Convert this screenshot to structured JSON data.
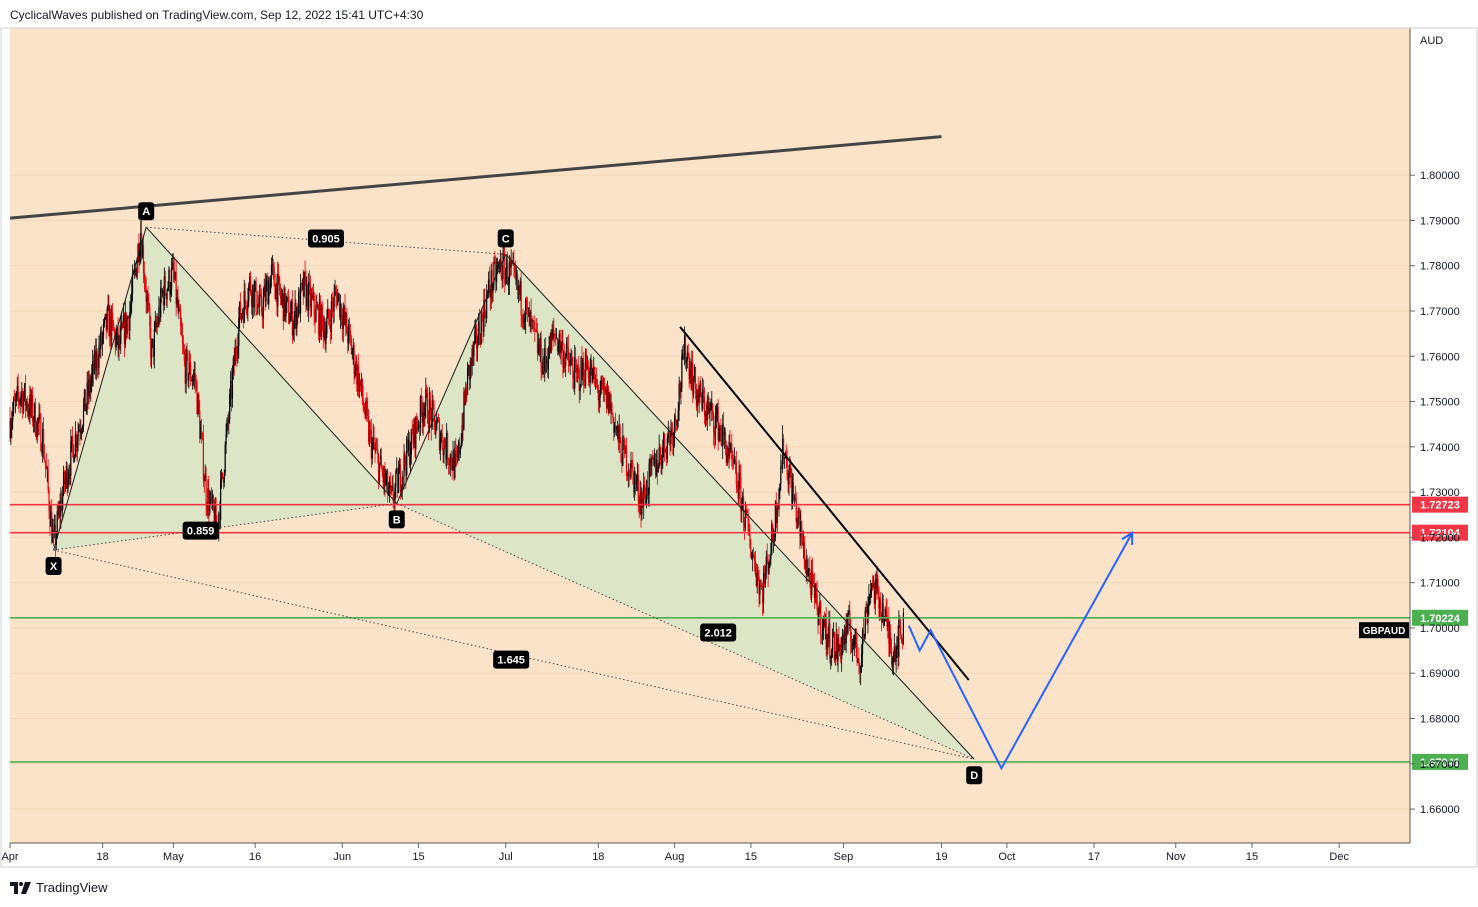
{
  "header": {
    "published": "CyclicalWaves published on TradingView.com, Sep 12, 2022 15:41 UTC+4:30"
  },
  "footer": {
    "brand": "TradingView",
    "logo_icon": "tradingview-logo-icon"
  },
  "colors": {
    "background": "#fbe3c9",
    "candle_up": "#000000",
    "candle_down": "#e8000b",
    "pattern_fill": "#d6e6c6",
    "red_level": "#f23645",
    "green_level": "#4caf50",
    "projection": "#2962ff"
  },
  "chart_data": {
    "type": "candlestick",
    "symbol": "GBPAUD",
    "currency": "AUD",
    "y_range": [
      1.6525,
      1.8325
    ],
    "x_range": [
      "2022-04-01",
      "2022-12-14"
    ],
    "y_ticks": [
      "1.80000",
      "1.79000",
      "1.78000",
      "1.77000",
      "1.76000",
      "1.75000",
      "1.74000",
      "1.73000",
      "1.72000",
      "1.71000",
      "1.70000",
      "1.69000",
      "1.68000",
      "1.67000",
      "1.66000"
    ],
    "x_ticks": [
      {
        "date": "2022-04-01",
        "label": "Apr"
      },
      {
        "date": "2022-04-18",
        "label": "18"
      },
      {
        "date": "2022-05-01",
        "label": "May"
      },
      {
        "date": "2022-05-16",
        "label": "16"
      },
      {
        "date": "2022-06-01",
        "label": "Jun"
      },
      {
        "date": "2022-06-15",
        "label": "15"
      },
      {
        "date": "2022-07-01",
        "label": "Jul"
      },
      {
        "date": "2022-07-18",
        "label": "18"
      },
      {
        "date": "2022-08-01",
        "label": "Aug"
      },
      {
        "date": "2022-08-15",
        "label": "15"
      },
      {
        "date": "2022-09-01",
        "label": "Sep"
      },
      {
        "date": "2022-09-19",
        "label": "19"
      },
      {
        "date": "2022-10-01",
        "label": "Oct"
      },
      {
        "date": "2022-10-17",
        "label": "17"
      },
      {
        "date": "2022-11-01",
        "label": "Nov"
      },
      {
        "date": "2022-11-15",
        "label": "15"
      },
      {
        "date": "2022-12-01",
        "label": "Dec"
      }
    ],
    "price_path": [
      [
        "2022-04-01",
        1.746
      ],
      [
        "2022-04-03",
        1.752
      ],
      [
        "2022-04-05",
        1.748
      ],
      [
        "2022-04-07",
        1.742
      ],
      [
        "2022-04-09",
        1.718
      ],
      [
        "2022-04-11",
        1.732
      ],
      [
        "2022-04-13",
        1.742
      ],
      [
        "2022-04-15",
        1.75
      ],
      [
        "2022-04-17",
        1.76
      ],
      [
        "2022-04-19",
        1.768
      ],
      [
        "2022-04-21",
        1.762
      ],
      [
        "2022-04-23",
        1.77
      ],
      [
        "2022-04-25",
        1.788
      ],
      [
        "2022-04-27",
        1.76
      ],
      [
        "2022-04-29",
        1.774
      ],
      [
        "2022-05-01",
        1.778
      ],
      [
        "2022-05-03",
        1.758
      ],
      [
        "2022-05-05",
        1.755
      ],
      [
        "2022-05-07",
        1.73
      ],
      [
        "2022-05-09",
        1.722
      ],
      [
        "2022-05-11",
        1.745
      ],
      [
        "2022-05-13",
        1.768
      ],
      [
        "2022-05-15",
        1.776
      ],
      [
        "2022-05-17",
        1.77
      ],
      [
        "2022-05-19",
        1.778
      ],
      [
        "2022-05-21",
        1.772
      ],
      [
        "2022-05-23",
        1.768
      ],
      [
        "2022-05-25",
        1.775
      ],
      [
        "2022-05-27",
        1.77
      ],
      [
        "2022-05-29",
        1.766
      ],
      [
        "2022-05-31",
        1.774
      ],
      [
        "2022-06-02",
        1.765
      ],
      [
        "2022-06-04",
        1.755
      ],
      [
        "2022-06-06",
        1.742
      ],
      [
        "2022-06-08",
        1.735
      ],
      [
        "2022-06-10",
        1.728
      ],
      [
        "2022-06-12",
        1.735
      ],
      [
        "2022-06-14",
        1.742
      ],
      [
        "2022-06-16",
        1.75
      ],
      [
        "2022-06-18",
        1.745
      ],
      [
        "2022-06-20",
        1.74
      ],
      [
        "2022-06-22",
        1.735
      ],
      [
        "2022-06-24",
        1.755
      ],
      [
        "2022-06-26",
        1.765
      ],
      [
        "2022-06-28",
        1.775
      ],
      [
        "2022-06-30",
        1.78
      ],
      [
        "2022-07-02",
        1.778
      ],
      [
        "2022-07-04",
        1.772
      ],
      [
        "2022-07-06",
        1.765
      ],
      [
        "2022-07-08",
        1.758
      ],
      [
        "2022-07-10",
        1.765
      ],
      [
        "2022-07-12",
        1.76
      ],
      [
        "2022-07-14",
        1.755
      ],
      [
        "2022-07-16",
        1.758
      ],
      [
        "2022-07-18",
        1.752
      ],
      [
        "2022-07-20",
        1.75
      ],
      [
        "2022-07-22",
        1.74
      ],
      [
        "2022-07-24",
        1.735
      ],
      [
        "2022-07-26",
        1.728
      ],
      [
        "2022-07-28",
        1.735
      ],
      [
        "2022-07-30",
        1.74
      ],
      [
        "2022-08-01",
        1.745
      ],
      [
        "2022-08-03",
        1.762
      ],
      [
        "2022-08-05",
        1.752
      ],
      [
        "2022-08-07",
        1.748
      ],
      [
        "2022-08-09",
        1.745
      ],
      [
        "2022-08-11",
        1.738
      ],
      [
        "2022-08-13",
        1.73
      ],
      [
        "2022-08-15",
        1.718
      ],
      [
        "2022-08-17",
        1.708
      ],
      [
        "2022-08-19",
        1.72
      ],
      [
        "2022-08-21",
        1.74
      ],
      [
        "2022-08-23",
        1.728
      ],
      [
        "2022-08-25",
        1.715
      ],
      [
        "2022-08-27",
        1.705
      ],
      [
        "2022-08-29",
        1.698
      ],
      [
        "2022-08-31",
        1.695
      ],
      [
        "2022-09-02",
        1.7
      ],
      [
        "2022-09-04",
        1.693
      ],
      [
        "2022-09-06",
        1.71
      ],
      [
        "2022-09-08",
        1.705
      ],
      [
        "2022-09-10",
        1.695
      ],
      [
        "2022-09-12",
        1.7
      ]
    ],
    "pattern": {
      "points": [
        {
          "label": "X",
          "date": "2022-04-09",
          "price": 1.7172
        },
        {
          "label": "A",
          "date": "2022-04-26",
          "price": 1.7885
        },
        {
          "label": "B",
          "date": "2022-06-11",
          "price": 1.7275
        },
        {
          "label": "C",
          "date": "2022-07-01",
          "price": 1.7825
        },
        {
          "label": "D",
          "date": "2022-09-25",
          "price": 1.671
        }
      ],
      "ratios": [
        {
          "label": "0.905",
          "date": "2022-05-29",
          "price": 1.786
        },
        {
          "label": "0.859",
          "date": "2022-05-06",
          "price": 1.7215
        },
        {
          "label": "2.012",
          "date": "2022-08-09",
          "price": 1.699
        },
        {
          "label": "1.645",
          "date": "2022-07-02",
          "price": 1.693
        }
      ]
    },
    "trend_lines": [
      {
        "name": "upper-channel-line",
        "from": [
          "2022-04-01",
          1.7905
        ],
        "to": [
          "2022-09-19",
          1.8085
        ],
        "color": "#444444",
        "width": 3
      },
      {
        "name": "descending-resistance-line",
        "from": [
          "2022-08-02",
          1.7665
        ],
        "to": [
          "2022-09-24",
          1.6885
        ],
        "color": "#000000",
        "width": 2
      }
    ],
    "levels": [
      {
        "price": 1.72723,
        "label": "1.72723",
        "color": "#f23645"
      },
      {
        "price": 1.72104,
        "label": "1.72104",
        "color": "#f23645"
      },
      {
        "price": 1.70224,
        "label": "1.70224",
        "color": "#4caf50"
      },
      {
        "price": 1.67041,
        "label": "1.67041",
        "color": "#4caf50"
      }
    ],
    "last_price_label": "GBPAUD",
    "projection_path": [
      [
        "2022-09-13",
        1.7005
      ],
      [
        "2022-09-15",
        1.695
      ],
      [
        "2022-09-17",
        1.6995
      ],
      [
        "2022-09-30",
        1.669
      ],
      [
        "2022-10-24",
        1.721
      ]
    ]
  }
}
